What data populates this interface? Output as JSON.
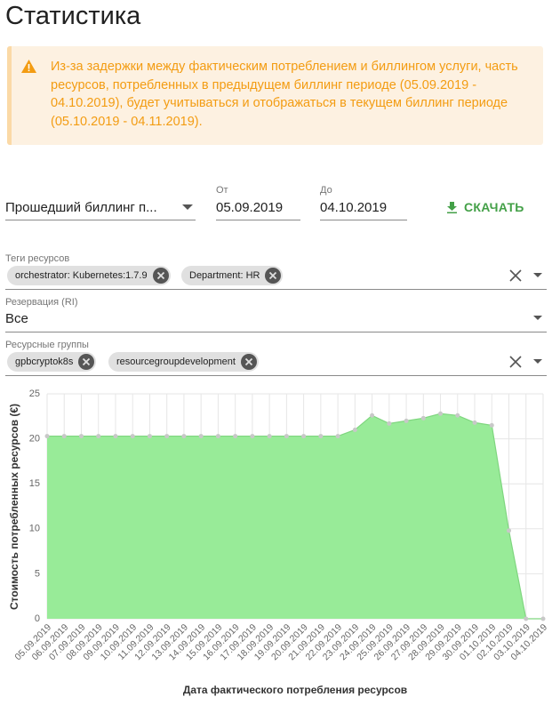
{
  "header": {
    "title": "Статистика"
  },
  "alert": {
    "text": "Из-за задержки между фактическим потреблением и биллингом услуги, часть ресурсов, потребленных в предыдущем биллинг периоде (05.09.2019 - 04.10.2019), будет учитываться и отображаться в текущем биллинг периоде (05.10.2019 - 04.11.2019)."
  },
  "filters": {
    "period": "Прошедший биллинг п...",
    "from": {
      "label": "От",
      "value": "05.09.2019"
    },
    "to": {
      "label": "До",
      "value": "04.10.2019"
    },
    "download": "СКАЧАТЬ",
    "tags": {
      "label": "Теги ресурсов",
      "chips": [
        "orchestrator: Kubernetes:1.7.9",
        "Department: HR"
      ]
    },
    "reservation": {
      "label": "Резервация (RI)",
      "value": "Все"
    },
    "groups": {
      "label": "Ресурсные группы",
      "chips": [
        "gpbcryptok8s",
        "resourcegroupdevelopment"
      ]
    }
  },
  "chart_data": {
    "type": "area",
    "x_label": "Дата фактического потребления ресурсов",
    "y_label": "Стоимость потребленных ресурсов (€)",
    "categories": [
      "05.09.2019",
      "06.09.2019",
      "07.09.2019",
      "08.09.2019",
      "09.09.2019",
      "10.09.2019",
      "11.09.2019",
      "12.09.2019",
      "13.09.2019",
      "14.09.2019",
      "15.09.2019",
      "16.09.2019",
      "17.09.2019",
      "18.09.2019",
      "19.09.2019",
      "20.09.2019",
      "21.09.2019",
      "22.09.2019",
      "23.09.2019",
      "24.09.2019",
      "25.09.2019",
      "26.09.2019",
      "27.09.2019",
      "28.09.2019",
      "29.09.2019",
      "30.09.2019",
      "01.10.2019",
      "02.10.2019",
      "03.10.2019",
      "04.10.2019"
    ],
    "values": [
      20.3,
      20.3,
      20.3,
      20.3,
      20.3,
      20.3,
      20.3,
      20.3,
      20.3,
      20.3,
      20.3,
      20.3,
      20.3,
      20.3,
      20.3,
      20.3,
      20.3,
      20.3,
      21.0,
      22.6,
      21.7,
      22.0,
      22.3,
      22.8,
      22.6,
      21.8,
      21.5,
      9.8,
      0,
      0
    ],
    "color": "#98eb98",
    "ylim": [
      0,
      25
    ],
    "yticks": [
      0,
      5,
      10,
      15,
      20,
      25
    ],
    "grid": true
  }
}
